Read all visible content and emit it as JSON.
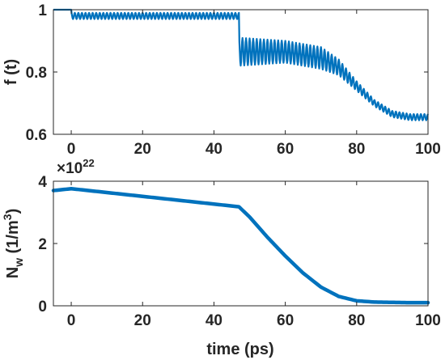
{
  "chart_data": [
    {
      "type": "line",
      "title": "",
      "ylabel": "f (t)",
      "xlabel": "",
      "xlim": [
        -5,
        100
      ],
      "ylim": [
        0.6,
        1.0
      ],
      "xticks": [
        0,
        20,
        40,
        60,
        80,
        100
      ],
      "yticks": [
        0.6,
        0.8,
        1
      ],
      "ytick_labels": [
        "0.6",
        "0.8",
        "1"
      ],
      "xtick_labels": [
        "0",
        "20",
        "40",
        "60",
        "80",
        "100"
      ],
      "grid": false,
      "line_color": "#0072BD",
      "series": [
        {
          "description": "oscillating envelope",
          "x": [
            -5,
            0,
            0.1,
            46.9,
            47,
            47.1,
            60,
            70,
            75,
            80,
            85,
            90,
            95,
            100
          ],
          "y_upper": [
            1.0,
            1.0,
            0.99,
            0.99,
            0.99,
            0.91,
            0.9,
            0.88,
            0.84,
            0.77,
            0.71,
            0.675,
            0.665,
            0.665
          ],
          "y_lower": [
            1.0,
            1.0,
            0.97,
            0.97,
            0.97,
            0.82,
            0.83,
            0.81,
            0.79,
            0.74,
            0.69,
            0.655,
            0.645,
            0.645
          ],
          "oscillation_period": 1.0
        }
      ]
    },
    {
      "type": "line",
      "title": "",
      "ylabel_main": "N",
      "ylabel_sub": "w",
      "ylabel_unit_open": " (1/m",
      "ylabel_unit_sup": "3",
      "ylabel_unit_close": ")",
      "xlabel": "time (ps)",
      "exponent_prefix": "×10",
      "exponent_power": "22",
      "xlim": [
        -5,
        100
      ],
      "ylim": [
        0,
        4
      ],
      "xticks": [
        0,
        20,
        40,
        60,
        80,
        100
      ],
      "xtick_labels": [
        "0",
        "20",
        "40",
        "60",
        "80",
        "100"
      ],
      "yticks": [
        0,
        2,
        4
      ],
      "ytick_labels": [
        "0",
        "2",
        "4"
      ],
      "grid": false,
      "line_color": "#0072BD",
      "series": [
        {
          "x": [
            -5,
            0,
            47,
            50,
            55,
            60,
            65,
            70,
            75,
            80,
            85,
            90,
            95,
            100
          ],
          "y": [
            3.7,
            3.76,
            3.18,
            2.85,
            2.2,
            1.6,
            1.05,
            0.6,
            0.3,
            0.16,
            0.12,
            0.11,
            0.1,
            0.1
          ]
        }
      ]
    }
  ]
}
